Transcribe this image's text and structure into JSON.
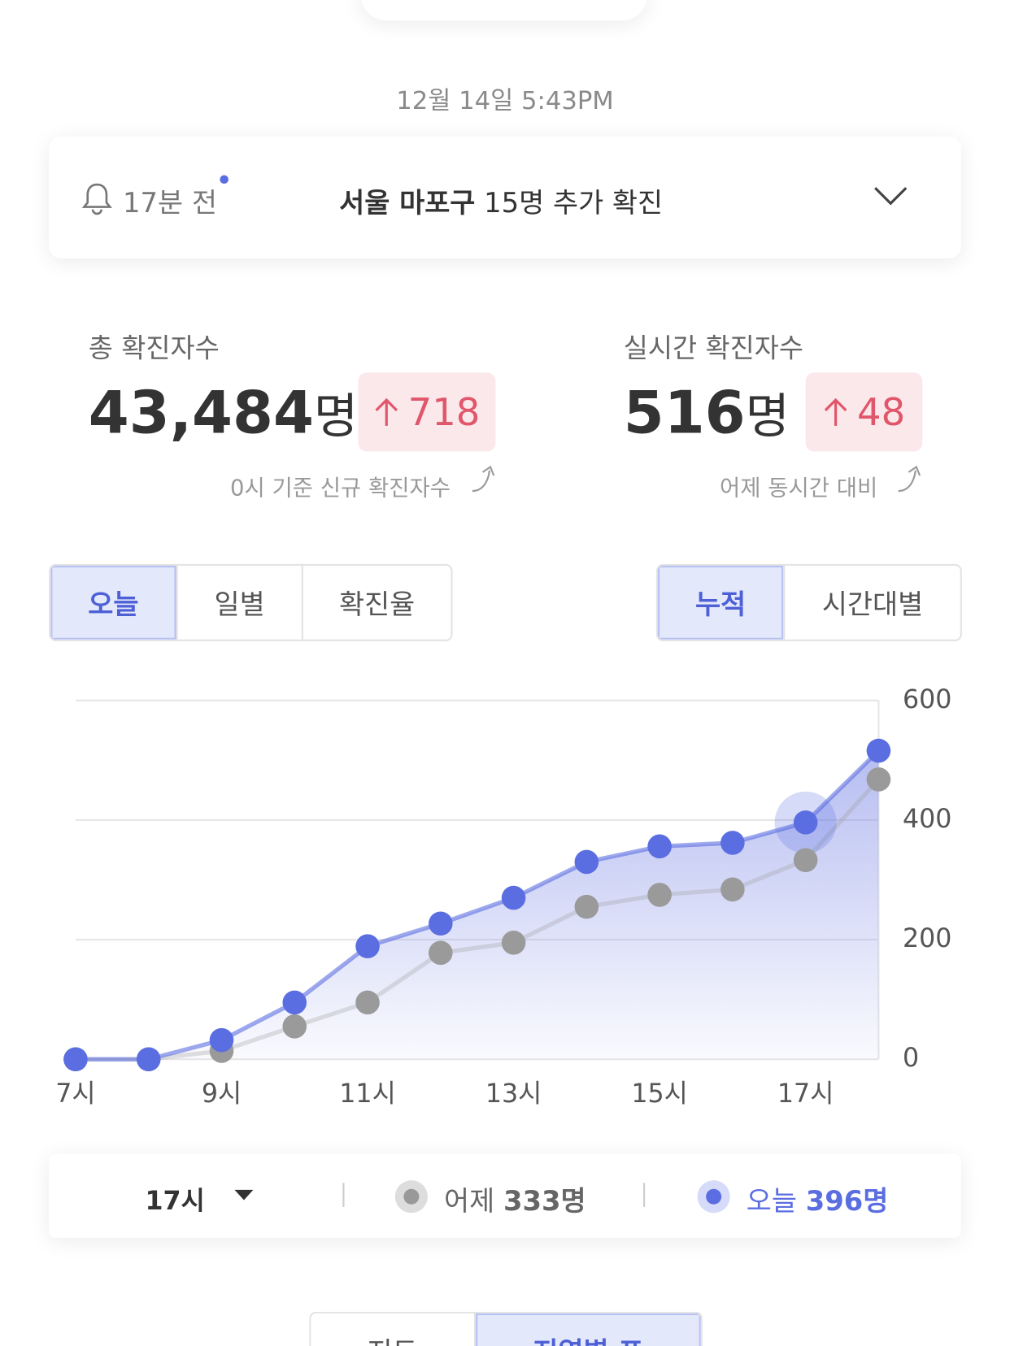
{
  "header": {
    "timestamp": "12월 14일 5:43PM"
  },
  "notice": {
    "time": "17분 전",
    "region": "서울 마포구",
    "message": "15명 추가 확진"
  },
  "stats": [
    {
      "label": "총 확진자수",
      "value": "43,484",
      "unit": "명",
      "change": "718",
      "note": "0시 기준 신규 확진자수"
    },
    {
      "label": "실시간 확진자수",
      "value": "516",
      "unit": "명",
      "change": "48",
      "note": "어제 동시간 대비"
    }
  ],
  "tabs": {
    "period": [
      "오늘",
      "일별",
      "확진율"
    ],
    "mode": [
      "누적",
      "시간대별"
    ]
  },
  "chart_data": {
    "type": "line",
    "categories": [
      "7시",
      null,
      "9시",
      null,
      "11시",
      null,
      "13시",
      null,
      "15시",
      null,
      "17시",
      null
    ],
    "series": [
      {
        "name": "어제",
        "color": "#9a9a9a",
        "values": [
          0,
          0,
          14,
          55,
          95,
          178,
          195,
          255,
          275,
          284,
          333,
          468
        ]
      },
      {
        "name": "오늘",
        "color": "#5b6ee1",
        "values": [
          0,
          0,
          32,
          95,
          189,
          227,
          270,
          330,
          356,
          362,
          396,
          516
        ]
      }
    ],
    "ylim": [
      0,
      600
    ],
    "yticks": [
      0,
      200,
      400,
      600
    ],
    "grid": true
  },
  "selection": {
    "hour": "17시",
    "yesterday_label": "어제",
    "yesterday_value": "333명",
    "today_label": "오늘",
    "today_value": "396명"
  },
  "bottom_tabs": [
    "지도",
    "지역별 표"
  ]
}
